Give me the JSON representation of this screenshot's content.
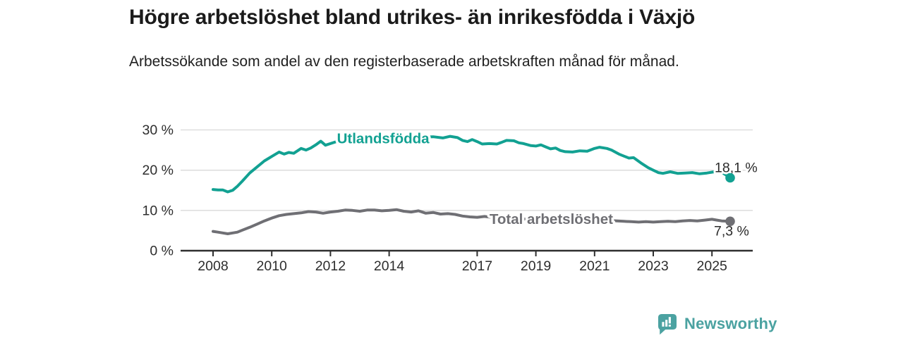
{
  "header": {
    "title": "Högre arbetslöshet bland utrikes- än inrikesfödda i Växjö",
    "subtitle": "Arbetssökande som andel av den registerbaserade arbetskraften månad för månad."
  },
  "footer": {
    "brand": "Newsworthy",
    "logo_icon": "newsworthy-speech-bubble-bar-chart-icon"
  },
  "colors": {
    "teal_series": "#12a192",
    "gray_series": "#6f6f74",
    "grid": "#d9d9d9",
    "axis": "#2f2f2f",
    "axis_text": "#2d2d2d",
    "annotation": "#2b2b2b",
    "logo_teal": "#4ba2a1",
    "title_text": "#1b1b1b"
  },
  "chart_data": {
    "type": "line",
    "unit": "percent",
    "x_axis": {
      "ticks": [
        2008,
        2010,
        2012,
        2014,
        2017,
        2019,
        2021,
        2023,
        2025
      ],
      "range_years": [
        2007.1,
        2026.4
      ]
    },
    "y_axis": {
      "ticks": [
        0,
        10,
        20,
        30
      ],
      "tick_labels": [
        "0 %",
        "10 %",
        "20 %",
        "30 %"
      ],
      "range": [
        0,
        32
      ],
      "grid": true
    },
    "series": [
      {
        "id": "utlandsfodda",
        "name": "Utlandsfödda",
        "color": "#12a192",
        "inline_label": {
          "text": "Utlandsfödda",
          "year": 2012.22,
          "value": 27.9
        },
        "end_label": "18,1 %",
        "end_value": 18.1,
        "end_label_side": "above",
        "points": [
          [
            2008.0,
            15.2
          ],
          [
            2008.17,
            15.1
          ],
          [
            2008.33,
            15.1
          ],
          [
            2008.5,
            14.6
          ],
          [
            2008.67,
            15.0
          ],
          [
            2008.83,
            16.0
          ],
          [
            2009.0,
            17.3
          ],
          [
            2009.25,
            19.3
          ],
          [
            2009.5,
            20.8
          ],
          [
            2009.75,
            22.3
          ],
          [
            2010.0,
            23.4
          ],
          [
            2010.25,
            24.5
          ],
          [
            2010.42,
            24.0
          ],
          [
            2010.58,
            24.4
          ],
          [
            2010.75,
            24.2
          ],
          [
            2011.0,
            25.4
          ],
          [
            2011.17,
            25.0
          ],
          [
            2011.33,
            25.5
          ],
          [
            2011.5,
            26.3
          ],
          [
            2011.67,
            27.2
          ],
          [
            2011.83,
            26.2
          ],
          [
            2012.0,
            26.6
          ],
          [
            2012.25,
            27.2
          ],
          [
            2012.5,
            27.6
          ],
          [
            2012.75,
            27.8
          ],
          [
            2013.0,
            27.9
          ],
          [
            2013.5,
            28.0
          ],
          [
            2014.0,
            28.1
          ],
          [
            2014.5,
            28.2
          ],
          [
            2015.0,
            28.2
          ],
          [
            2015.5,
            28.3
          ],
          [
            2015.83,
            28.0
          ],
          [
            2016.08,
            28.4
          ],
          [
            2016.33,
            28.1
          ],
          [
            2016.5,
            27.4
          ],
          [
            2016.67,
            27.1
          ],
          [
            2016.83,
            27.6
          ],
          [
            2017.0,
            27.1
          ],
          [
            2017.17,
            26.5
          ],
          [
            2017.42,
            26.6
          ],
          [
            2017.67,
            26.5
          ],
          [
            2017.83,
            26.9
          ],
          [
            2018.0,
            27.4
          ],
          [
            2018.25,
            27.3
          ],
          [
            2018.42,
            26.8
          ],
          [
            2018.58,
            26.6
          ],
          [
            2018.83,
            26.1
          ],
          [
            2019.0,
            26.0
          ],
          [
            2019.17,
            26.3
          ],
          [
            2019.33,
            25.8
          ],
          [
            2019.5,
            25.3
          ],
          [
            2019.67,
            25.5
          ],
          [
            2019.83,
            24.9
          ],
          [
            2020.0,
            24.6
          ],
          [
            2020.25,
            24.5
          ],
          [
            2020.5,
            24.8
          ],
          [
            2020.75,
            24.7
          ],
          [
            2021.0,
            25.4
          ],
          [
            2021.17,
            25.7
          ],
          [
            2021.42,
            25.4
          ],
          [
            2021.58,
            25.0
          ],
          [
            2021.83,
            24.0
          ],
          [
            2022.0,
            23.5
          ],
          [
            2022.17,
            23.0
          ],
          [
            2022.33,
            23.1
          ],
          [
            2022.58,
            21.8
          ],
          [
            2022.83,
            20.6
          ],
          [
            2023.0,
            20.0
          ],
          [
            2023.17,
            19.4
          ],
          [
            2023.33,
            19.2
          ],
          [
            2023.58,
            19.6
          ],
          [
            2023.83,
            19.2
          ],
          [
            2024.08,
            19.3
          ],
          [
            2024.33,
            19.4
          ],
          [
            2024.58,
            19.1
          ],
          [
            2024.83,
            19.3
          ],
          [
            2025.08,
            19.6
          ],
          [
            2025.25,
            19.9
          ],
          [
            2025.62,
            18.1
          ]
        ]
      },
      {
        "id": "total",
        "name": "Total arbetslöshet",
        "color": "#6f6f74",
        "inline_label": {
          "text": "Total arbetslöshet",
          "year": 2017.42,
          "value": 7.87
        },
        "end_label": "7,3 %",
        "end_value": 7.3,
        "end_label_side": "below",
        "points": [
          [
            2008.0,
            4.8
          ],
          [
            2008.17,
            4.6
          ],
          [
            2008.33,
            4.4
          ],
          [
            2008.5,
            4.2
          ],
          [
            2008.67,
            4.4
          ],
          [
            2008.83,
            4.6
          ],
          [
            2009.0,
            5.1
          ],
          [
            2009.25,
            5.8
          ],
          [
            2009.5,
            6.6
          ],
          [
            2009.75,
            7.4
          ],
          [
            2010.0,
            8.1
          ],
          [
            2010.25,
            8.7
          ],
          [
            2010.5,
            9.0
          ],
          [
            2010.75,
            9.2
          ],
          [
            2011.0,
            9.4
          ],
          [
            2011.25,
            9.7
          ],
          [
            2011.5,
            9.6
          ],
          [
            2011.75,
            9.3
          ],
          [
            2012.0,
            9.6
          ],
          [
            2012.25,
            9.8
          ],
          [
            2012.5,
            10.1
          ],
          [
            2012.75,
            10.0
          ],
          [
            2013.0,
            9.8
          ],
          [
            2013.25,
            10.1
          ],
          [
            2013.5,
            10.1
          ],
          [
            2013.75,
            9.9
          ],
          [
            2014.0,
            10.0
          ],
          [
            2014.25,
            10.2
          ],
          [
            2014.5,
            9.8
          ],
          [
            2014.75,
            9.6
          ],
          [
            2015.0,
            9.9
          ],
          [
            2015.25,
            9.3
          ],
          [
            2015.5,
            9.5
          ],
          [
            2015.75,
            9.1
          ],
          [
            2016.0,
            9.2
          ],
          [
            2016.25,
            9.0
          ],
          [
            2016.5,
            8.6
          ],
          [
            2016.75,
            8.4
          ],
          [
            2017.0,
            8.3
          ],
          [
            2017.25,
            8.5
          ],
          [
            2017.5,
            8.3
          ],
          [
            2017.75,
            8.2
          ],
          [
            2018.0,
            8.1
          ],
          [
            2018.5,
            7.9
          ],
          [
            2019.0,
            7.7
          ],
          [
            2019.5,
            7.5
          ],
          [
            2020.0,
            7.7
          ],
          [
            2020.5,
            7.9
          ],
          [
            2021.0,
            7.8
          ],
          [
            2021.5,
            7.5
          ],
          [
            2022.0,
            7.3
          ],
          [
            2022.25,
            7.2
          ],
          [
            2022.5,
            7.1
          ],
          [
            2022.75,
            7.2
          ],
          [
            2023.0,
            7.1
          ],
          [
            2023.25,
            7.2
          ],
          [
            2023.5,
            7.3
          ],
          [
            2023.75,
            7.2
          ],
          [
            2024.0,
            7.4
          ],
          [
            2024.25,
            7.5
          ],
          [
            2024.5,
            7.4
          ],
          [
            2024.75,
            7.6
          ],
          [
            2025.0,
            7.8
          ],
          [
            2025.17,
            7.6
          ],
          [
            2025.33,
            7.4
          ],
          [
            2025.62,
            7.3
          ]
        ]
      }
    ]
  }
}
